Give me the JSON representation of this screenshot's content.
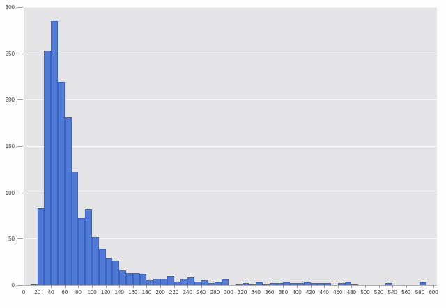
{
  "chart_data": {
    "type": "bar",
    "subtype": "histogram",
    "title": "",
    "xlabel": "",
    "ylabel": "",
    "xlim": [
      0,
      600
    ],
    "ylim": [
      0,
      300
    ],
    "bin_width": 10,
    "grid": "horizontal",
    "legend": "none",
    "x_tick_labels": [
      0,
      20,
      40,
      60,
      80,
      100,
      120,
      140,
      160,
      180,
      200,
      220,
      240,
      260,
      280,
      300,
      320,
      340,
      360,
      380,
      400,
      420,
      440,
      460,
      480,
      500,
      520,
      540,
      560,
      580,
      600
    ],
    "y_tick_labels": [
      0,
      50,
      100,
      150,
      200,
      250,
      300
    ],
    "bin_starts": [
      0,
      10,
      20,
      30,
      40,
      50,
      60,
      70,
      80,
      90,
      100,
      110,
      120,
      130,
      140,
      150,
      160,
      170,
      180,
      190,
      200,
      210,
      220,
      230,
      240,
      250,
      260,
      270,
      280,
      290,
      300,
      310,
      320,
      330,
      340,
      350,
      360,
      370,
      380,
      390,
      400,
      410,
      420,
      430,
      440,
      450,
      460,
      470,
      480,
      490,
      500,
      510,
      520,
      530,
      540,
      550,
      560,
      570,
      580,
      590
    ],
    "values": [
      0,
      1,
      83,
      253,
      285,
      219,
      181,
      122,
      72,
      82,
      52,
      39,
      29,
      26,
      16,
      13,
      13,
      12,
      5,
      7,
      7,
      10,
      4,
      7,
      8,
      4,
      5,
      2,
      3,
      6,
      0,
      1,
      2,
      1,
      3,
      1,
      2,
      2,
      3,
      2,
      2,
      3,
      2,
      2,
      2,
      0,
      2,
      3,
      1,
      0,
      0,
      0,
      0,
      2,
      0,
      0,
      0,
      0,
      3,
      0
    ],
    "colors": {
      "page_bg": "#fefefe",
      "plot_bg": "#e4e3e6",
      "gridline": "#f6f5f7",
      "bar_fill": "#4f7bd7",
      "bar_border": "#3d63c2",
      "axis_line": "#abaab0",
      "tick": "#9b99a0",
      "axis_text": "#3c3c3c"
    }
  }
}
